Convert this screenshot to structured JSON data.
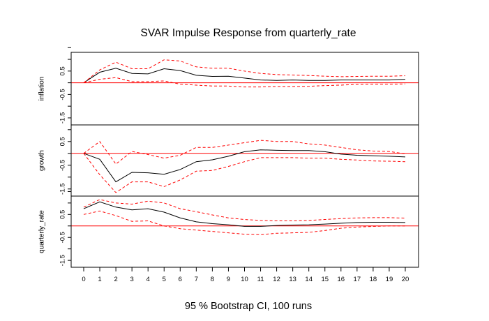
{
  "chart_data": {
    "type": "line",
    "title": "SVAR Impulse Response from quarterly_rate",
    "subtitle": "95 % Bootstrap CI,  100 runs",
    "x": [
      0,
      1,
      2,
      3,
      4,
      5,
      6,
      7,
      8,
      9,
      10,
      11,
      12,
      13,
      14,
      15,
      16,
      17,
      18,
      19,
      20
    ],
    "x_ticks": [
      "0",
      "1",
      "2",
      "3",
      "4",
      "5",
      "6",
      "7",
      "8",
      "9",
      "10",
      "11",
      "12",
      "13",
      "14",
      "15",
      "16",
      "17",
      "18",
      "19",
      "20"
    ],
    "panels": [
      {
        "ylabel": "inflation",
        "ylim": [
          -1.8,
          1.3
        ],
        "y_ticks": [
          {
            "value": 1.5,
            "label": ""
          },
          {
            "value": 1.0,
            "label": ""
          },
          {
            "value": 0.5,
            "label": "0.5"
          },
          {
            "value": 0.0,
            "label": ""
          },
          {
            "value": -0.5,
            "label": "-0.5"
          },
          {
            "value": -1.0,
            "label": ""
          },
          {
            "value": -1.5,
            "label": "-1.5"
          }
        ],
        "series": [
          {
            "role": "irf",
            "color": "#000000",
            "dashed": false,
            "values": [
              0.0,
              0.45,
              0.62,
              0.4,
              0.38,
              0.6,
              0.52,
              0.32,
              0.27,
              0.28,
              0.2,
              0.12,
              0.1,
              0.12,
              0.1,
              0.1,
              0.12,
              0.12,
              0.12,
              0.12,
              0.15
            ]
          },
          {
            "role": "upper",
            "color": "#ff0000",
            "dashed": true,
            "values": [
              0.0,
              0.55,
              0.88,
              0.6,
              0.6,
              0.98,
              0.93,
              0.68,
              0.62,
              0.62,
              0.5,
              0.4,
              0.35,
              0.33,
              0.31,
              0.28,
              0.26,
              0.27,
              0.28,
              0.28,
              0.3
            ]
          },
          {
            "role": "lower",
            "color": "#ff0000",
            "dashed": true,
            "values": [
              0.0,
              0.15,
              0.22,
              0.05,
              0.05,
              0.08,
              -0.06,
              -0.1,
              -0.14,
              -0.14,
              -0.18,
              -0.18,
              -0.16,
              -0.16,
              -0.15,
              -0.12,
              -0.1,
              -0.07,
              -0.06,
              -0.06,
              -0.05
            ]
          }
        ]
      },
      {
        "ylabel": "growth",
        "ylim": [
          -1.8,
          1.2
        ],
        "y_ticks": [
          {
            "value": 1.0,
            "label": ""
          },
          {
            "value": 0.5,
            "label": "0.5"
          },
          {
            "value": 0.0,
            "label": ""
          },
          {
            "value": -0.5,
            "label": "-0.5"
          },
          {
            "value": -1.0,
            "label": ""
          },
          {
            "value": -1.5,
            "label": "-1.5"
          }
        ],
        "series": [
          {
            "role": "irf",
            "color": "#000000",
            "dashed": false,
            "values": [
              0.0,
              -0.25,
              -1.2,
              -0.8,
              -0.82,
              -0.88,
              -0.68,
              -0.35,
              -0.27,
              -0.12,
              0.07,
              0.15,
              0.13,
              0.12,
              0.12,
              0.07,
              -0.03,
              -0.08,
              -0.1,
              -0.12,
              -0.15
            ]
          },
          {
            "role": "upper",
            "color": "#ff0000",
            "dashed": true,
            "values": [
              0.0,
              0.5,
              -0.45,
              0.08,
              -0.05,
              -0.2,
              -0.08,
              0.25,
              0.25,
              0.35,
              0.45,
              0.55,
              0.5,
              0.5,
              0.4,
              0.35,
              0.25,
              0.15,
              0.1,
              0.08,
              -0.02
            ]
          },
          {
            "role": "lower",
            "color": "#ff0000",
            "dashed": true,
            "values": [
              0.0,
              -0.9,
              -1.65,
              -1.2,
              -1.2,
              -1.4,
              -1.12,
              -0.75,
              -0.72,
              -0.55,
              -0.35,
              -0.18,
              -0.18,
              -0.18,
              -0.2,
              -0.2,
              -0.25,
              -0.28,
              -0.32,
              -0.33,
              -0.35
            ]
          }
        ]
      },
      {
        "ylabel": "quarterly_rate",
        "ylim": [
          -1.8,
          1.3
        ],
        "y_ticks": [
          {
            "value": 1.5,
            "label": ""
          },
          {
            "value": 1.0,
            "label": ""
          },
          {
            "value": 0.5,
            "label": "0.5"
          },
          {
            "value": 0.0,
            "label": ""
          },
          {
            "value": -0.5,
            "label": "-0.5"
          },
          {
            "value": -1.0,
            "label": ""
          },
          {
            "value": -1.5,
            "label": "-1.5"
          }
        ],
        "series": [
          {
            "role": "irf",
            "color": "#000000",
            "dashed": false,
            "values": [
              0.75,
              1.05,
              0.82,
              0.7,
              0.75,
              0.6,
              0.35,
              0.18,
              0.1,
              0.05,
              -0.02,
              -0.02,
              0.02,
              0.04,
              0.05,
              0.08,
              0.12,
              0.15,
              0.16,
              0.16,
              0.15
            ]
          },
          {
            "role": "upper",
            "color": "#ff0000",
            "dashed": true,
            "values": [
              0.82,
              1.15,
              1.0,
              0.95,
              1.08,
              1.0,
              0.75,
              0.62,
              0.48,
              0.35,
              0.28,
              0.24,
              0.22,
              0.22,
              0.24,
              0.28,
              0.32,
              0.35,
              0.36,
              0.36,
              0.34
            ]
          },
          {
            "role": "lower",
            "color": "#ff0000",
            "dashed": true,
            "values": [
              0.5,
              0.65,
              0.45,
              0.2,
              0.22,
              0.0,
              -0.12,
              -0.18,
              -0.24,
              -0.3,
              -0.36,
              -0.38,
              -0.32,
              -0.3,
              -0.28,
              -0.2,
              -0.1,
              -0.05,
              -0.02,
              0.0,
              0.0
            ]
          }
        ]
      }
    ],
    "zero_line": {
      "color": "#ff0000",
      "value": 0
    }
  }
}
